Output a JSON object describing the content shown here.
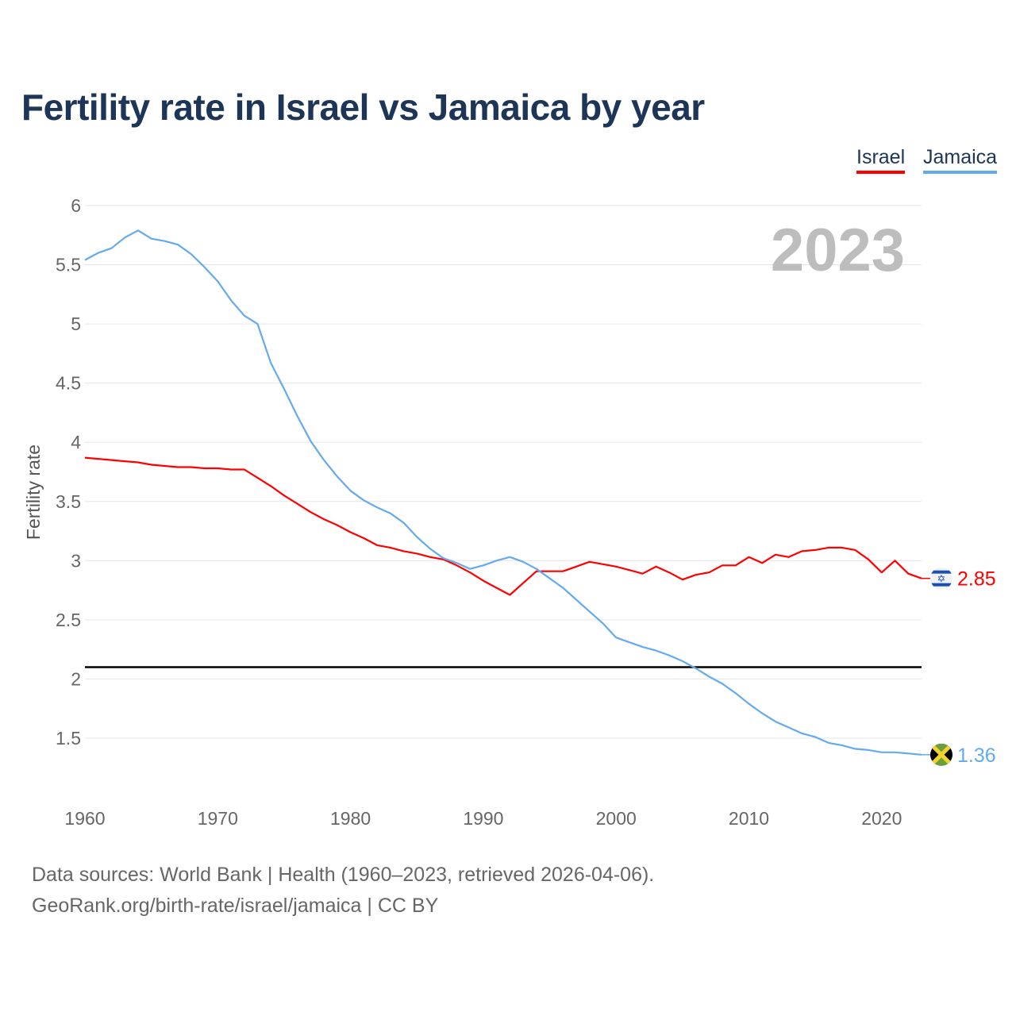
{
  "chart_data": {
    "type": "line",
    "title": "Fertility rate in Israel vs Jamaica by year",
    "ylabel": "Fertility rate",
    "xlabel": "",
    "year_watermark": "2023",
    "xlim": [
      1960,
      2023
    ],
    "ylim": [
      1.2,
      6
    ],
    "x_ticks": [
      1960,
      1970,
      1980,
      1990,
      2000,
      2010,
      2020
    ],
    "y_ticks": [
      1.5,
      2,
      2.5,
      3,
      3.5,
      4,
      4.5,
      5,
      5.5,
      6
    ],
    "grid": true,
    "legend_position": "top-right",
    "reference_line": {
      "value": 2.1,
      "color": "#000000"
    },
    "x": [
      1960,
      1961,
      1962,
      1963,
      1964,
      1965,
      1966,
      1967,
      1968,
      1969,
      1970,
      1971,
      1972,
      1973,
      1974,
      1975,
      1976,
      1977,
      1978,
      1979,
      1980,
      1981,
      1982,
      1983,
      1984,
      1985,
      1986,
      1987,
      1988,
      1989,
      1990,
      1991,
      1992,
      1993,
      1994,
      1995,
      1996,
      1997,
      1998,
      1999,
      2000,
      2001,
      2002,
      2003,
      2004,
      2005,
      2006,
      2007,
      2008,
      2009,
      2010,
      2011,
      2012,
      2013,
      2014,
      2015,
      2016,
      2017,
      2018,
      2019,
      2020,
      2021,
      2022,
      2023
    ],
    "series": [
      {
        "name": "Israel",
        "color": "#ff0000",
        "end_label": "2.85",
        "flag": "israel-flag",
        "values": [
          3.87,
          3.86,
          3.85,
          3.84,
          3.83,
          3.81,
          3.8,
          3.79,
          3.79,
          3.78,
          3.78,
          3.77,
          3.77,
          3.7,
          3.63,
          3.55,
          3.48,
          3.41,
          3.35,
          3.3,
          3.24,
          3.19,
          3.13,
          3.11,
          3.08,
          3.06,
          3.03,
          3.01,
          2.96,
          2.9,
          2.83,
          2.77,
          2.71,
          2.81,
          2.91,
          2.91,
          2.91,
          2.95,
          2.99,
          2.97,
          2.95,
          2.92,
          2.89,
          2.95,
          2.9,
          2.84,
          2.88,
          2.9,
          2.96,
          2.96,
          3.03,
          2.98,
          3.05,
          3.03,
          3.08,
          3.09,
          3.11,
          3.11,
          3.09,
          3.01,
          2.9,
          3.0,
          2.89,
          2.85
        ]
      },
      {
        "name": "Jamaica",
        "color": "#64aaee",
        "end_label": "1.36",
        "flag": "jamaica-flag",
        "values": [
          5.54,
          5.6,
          5.64,
          5.73,
          5.79,
          5.72,
          5.7,
          5.67,
          5.59,
          5.48,
          5.36,
          5.2,
          5.07,
          5.0,
          4.67,
          4.45,
          4.22,
          4.01,
          3.85,
          3.71,
          3.59,
          3.51,
          3.45,
          3.4,
          3.32,
          3.2,
          3.1,
          3.02,
          2.98,
          2.93,
          2.96,
          3.0,
          3.03,
          2.99,
          2.93,
          2.85,
          2.77,
          2.67,
          2.57,
          2.47,
          2.35,
          2.31,
          2.27,
          2.24,
          2.2,
          2.15,
          2.09,
          2.02,
          1.96,
          1.88,
          1.79,
          1.71,
          1.64,
          1.59,
          1.54,
          1.51,
          1.46,
          1.44,
          1.41,
          1.4,
          1.38,
          1.38,
          1.37,
          1.36
        ]
      }
    ]
  },
  "footer": {
    "sources": "Data sources: World Bank | Health (1960–2023, retrieved 2026-04-06).",
    "credit": "GeoRank.org/birth-rate/israel/jamaica | CC BY"
  }
}
